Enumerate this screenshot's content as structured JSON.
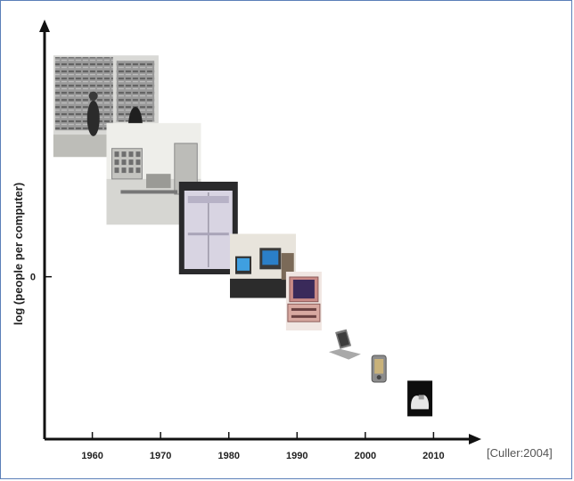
{
  "chart_data": {
    "type": "scatter",
    "title": "",
    "xlabel": "",
    "ylabel": "log (people per computer)",
    "x_ticks": [
      "1960",
      "1970",
      "1980",
      "1990",
      "2000",
      "2010"
    ],
    "x_tick_values": [
      1960,
      1970,
      1980,
      1990,
      2000,
      2010
    ],
    "y_ticks": [
      "0"
    ],
    "y_tick_values": [
      0
    ],
    "xlim": [
      1953,
      2017
    ],
    "ylim": [
      -6,
      9.5
    ],
    "grid": false,
    "points": [
      {
        "name": "mainframe",
        "icon": "mainframe-photo",
        "x": 1962,
        "y": 6.3
      },
      {
        "name": "minicomputer",
        "icon": "minicomputer-photo",
        "x": 1969,
        "y": 3.8
      },
      {
        "name": "workstation-cabinet",
        "icon": "cabinet-computer-photo",
        "x": 1977,
        "y": 1.8
      },
      {
        "name": "workstations",
        "icon": "workstation-photo",
        "x": 1985,
        "y": 0.4
      },
      {
        "name": "personal-computer",
        "icon": "desktop-pc-photo",
        "x": 1991,
        "y": -0.9
      },
      {
        "name": "laptop",
        "icon": "laptop-photo",
        "x": 1997,
        "y": -2.5
      },
      {
        "name": "handheld",
        "icon": "pda-photo",
        "x": 2002,
        "y": -3.4
      },
      {
        "name": "sensor-node",
        "icon": "hand-device-photo",
        "x": 2008,
        "y": -4.5
      }
    ]
  },
  "citation": "[Culler:2004]",
  "colors": {
    "axis": "#111111",
    "frame": "#5b7fb8"
  }
}
